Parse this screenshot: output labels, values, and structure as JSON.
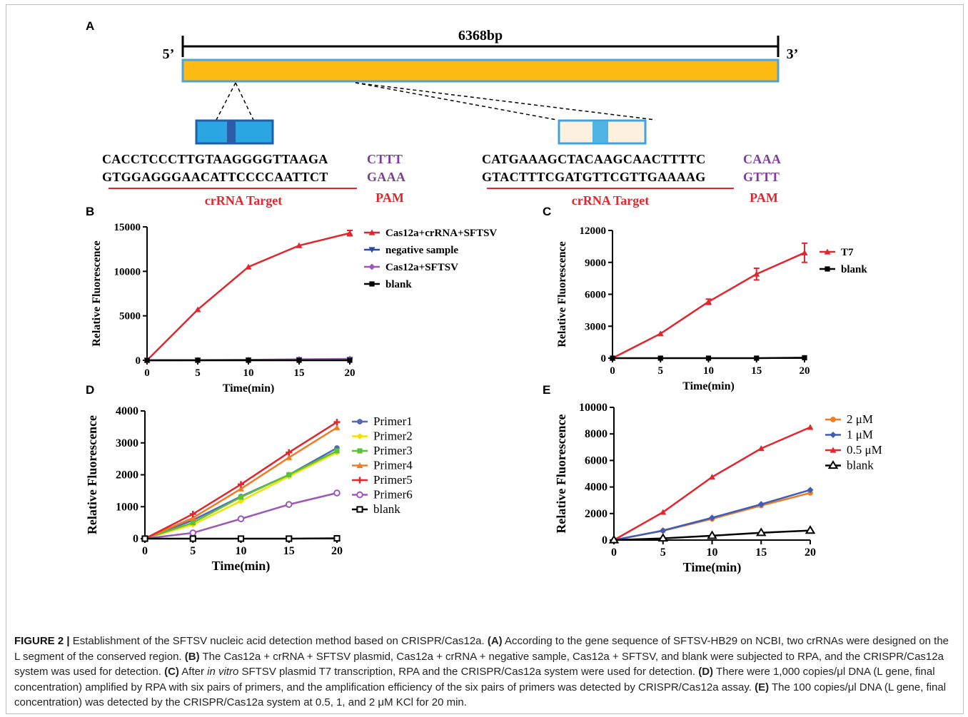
{
  "panelA": {
    "letter": "A",
    "length_label": "6368bp",
    "five_prime": "5’",
    "three_prime": "3’",
    "left": {
      "seq_top": "CACCTCCCTTGTAAGGGGTTAAGA",
      "pam_top": "CTTT",
      "seq_bottom": "GTGGAGGGAACATTCCCCAATTCT",
      "pam_bottom": "GAAA",
      "target_label": "crRNA Target",
      "pam_label": "PAM"
    },
    "right": {
      "seq_top": "CATGAAAGCTACAAGCAACTTTTC",
      "pam_top": "CAAA",
      "seq_bottom": "GTACTTTCGATGTTCGTTGAAAAG",
      "pam_bottom": "GTTT",
      "target_label": "crRNA Target",
      "pam_label": "PAM"
    },
    "colors": {
      "bar": "#FDBA12",
      "bar_border": "#4FA3D8",
      "box_left": "#2AA7E2",
      "box_right": "#FDF0DF",
      "pam": "#7B3F99",
      "target": "#E0262E"
    }
  },
  "chart_data": [
    {
      "panel": "B",
      "type": "line",
      "ylabel": "Relative Fluorescence",
      "xlabel": "Time(min)",
      "x": [
        0,
        5,
        10,
        15,
        20
      ],
      "xlim": [
        0,
        20
      ],
      "ylim": [
        0,
        15000
      ],
      "yticks": [
        0,
        5000,
        10000,
        15000
      ],
      "xticks": [
        0,
        5,
        10,
        15,
        20
      ],
      "legend_position": "top-right",
      "series": [
        {
          "name": "Cas12a+crRNA+SFTSV",
          "values": [
            0,
            5700,
            10500,
            12900,
            14300
          ],
          "color": "#E0262E",
          "marker": "tri-up"
        },
        {
          "name": "negative sample",
          "values": [
            0,
            10,
            30,
            60,
            90
          ],
          "color": "#2E4A9E",
          "marker": "tri-down"
        },
        {
          "name": "Cas12a+SFTSV",
          "values": [
            0,
            20,
            50,
            110,
            160
          ],
          "color": "#9B59B6",
          "marker": "diamond"
        },
        {
          "name": "blank",
          "values": [
            0,
            0,
            0,
            0,
            0
          ],
          "color": "#000000",
          "marker": "square"
        }
      ]
    },
    {
      "panel": "C",
      "type": "line",
      "ylabel": "Relative Fluorescence",
      "xlabel": "Time(min)",
      "x": [
        0,
        5,
        10,
        15,
        20
      ],
      "xlim": [
        0,
        20
      ],
      "ylim": [
        0,
        12000
      ],
      "yticks": [
        0,
        3000,
        6000,
        9000,
        12000
      ],
      "xticks": [
        0,
        5,
        10,
        15,
        20
      ],
      "legend_position": "top-right",
      "series": [
        {
          "name": "T7",
          "values": [
            0,
            2300,
            5300,
            7900,
            9900
          ],
          "color": "#E0262E",
          "marker": "tri-up"
        },
        {
          "name": "blank",
          "values": [
            0,
            0,
            0,
            0,
            40
          ],
          "color": "#000000",
          "marker": "square"
        }
      ]
    },
    {
      "panel": "D",
      "type": "line",
      "ylabel": "Relative Fluorescence",
      "xlabel": "Time(min)",
      "x": [
        0,
        5,
        10,
        15,
        20
      ],
      "xlim": [
        0,
        20
      ],
      "ylim": [
        0,
        4000
      ],
      "yticks": [
        0,
        1000,
        2000,
        3000,
        4000
      ],
      "xticks": [
        0,
        5,
        10,
        15,
        20
      ],
      "legend_position": "top-right",
      "series": [
        {
          "name": "Primer1",
          "values": [
            0,
            580,
            1320,
            2000,
            2840
          ],
          "color": "#5566B8",
          "marker": "circle"
        },
        {
          "name": "Primer2",
          "values": [
            0,
            440,
            1180,
            1950,
            2700
          ],
          "color": "#F2E200",
          "marker": "diamond"
        },
        {
          "name": "Primer3",
          "values": [
            0,
            500,
            1300,
            2000,
            2750
          ],
          "color": "#5BC236",
          "marker": "square"
        },
        {
          "name": "Primer4",
          "values": [
            0,
            650,
            1560,
            2540,
            3480
          ],
          "color": "#F07B22",
          "marker": "tri-up"
        },
        {
          "name": "Primer5",
          "values": [
            0,
            770,
            1700,
            2700,
            3650
          ],
          "color": "#E0262E",
          "marker": "plus"
        },
        {
          "name": "Primer6",
          "values": [
            0,
            180,
            620,
            1070,
            1430
          ],
          "color": "#9B59B6",
          "marker": "circle-open"
        },
        {
          "name": "blank",
          "values": [
            0,
            0,
            0,
            0,
            10
          ],
          "color": "#000000",
          "marker": "square-open"
        }
      ]
    },
    {
      "panel": "E",
      "type": "line",
      "ylabel": "Relative Fluorescence",
      "xlabel": "Time(min)",
      "x": [
        0,
        5,
        10,
        15,
        20
      ],
      "xlim": [
        0,
        20
      ],
      "ylim": [
        0,
        10000
      ],
      "yticks": [
        0,
        2000,
        4000,
        6000,
        8000,
        10000
      ],
      "xticks": [
        0,
        5,
        10,
        15,
        20
      ],
      "legend_position": "top-right",
      "series": [
        {
          "name": "2 μM",
          "values": [
            0,
            700,
            1600,
            2600,
            3550
          ],
          "color": "#F07B22",
          "marker": "circle"
        },
        {
          "name": "1 μM",
          "values": [
            0,
            720,
            1680,
            2700,
            3780
          ],
          "color": "#3F5DB5",
          "marker": "diamond"
        },
        {
          "name": "0.5 μM",
          "values": [
            0,
            2100,
            4750,
            6900,
            8500
          ],
          "color": "#E0262E",
          "marker": "tri-up"
        },
        {
          "name": "blank",
          "values": [
            0,
            130,
            330,
            550,
            720
          ],
          "color": "#000000",
          "marker": "tri-open"
        }
      ]
    }
  ],
  "caption": {
    "figure_label": "FIGURE 2 |",
    "intro": " Establishment of the SFTSV nucleic acid detection method based on CRISPR/Cas12a. ",
    "a_label": "(A)",
    "a_text": " According to the gene sequence of SFTSV-HB29 on NCBI, two crRNAs were designed on the L segment of the conserved region. ",
    "b_label": "(B)",
    "b_text": " The Cas12a + crRNA + SFTSV plasmid, Cas12a + crRNA + negative sample, Cas12a + SFTSV, and blank were subjected to RPA, and the CRISPR/Cas12a system was used for detection. ",
    "c_label": "(C)",
    "c_text_pre": " After ",
    "c_italic": "in vitro",
    "c_text_post": " SFTSV plasmid T7 transcription, RPA and the CRISPR/Cas12a system were used for detection. ",
    "d_label": "(D)",
    "d_text": " There were 1,000 copies/μl DNA (L gene, final concentration) amplified by RPA with six pairs of primers, and the amplification efficiency of the six pairs of primers was detected by CRISPR/Cas12a assay. ",
    "e_label": "(E)",
    "e_text": " The 100 copies/μl DNA (L gene, final concentration) was detected by the CRISPR/Cas12a system at 0.5, 1, and 2 μM KCl for 20 min."
  }
}
